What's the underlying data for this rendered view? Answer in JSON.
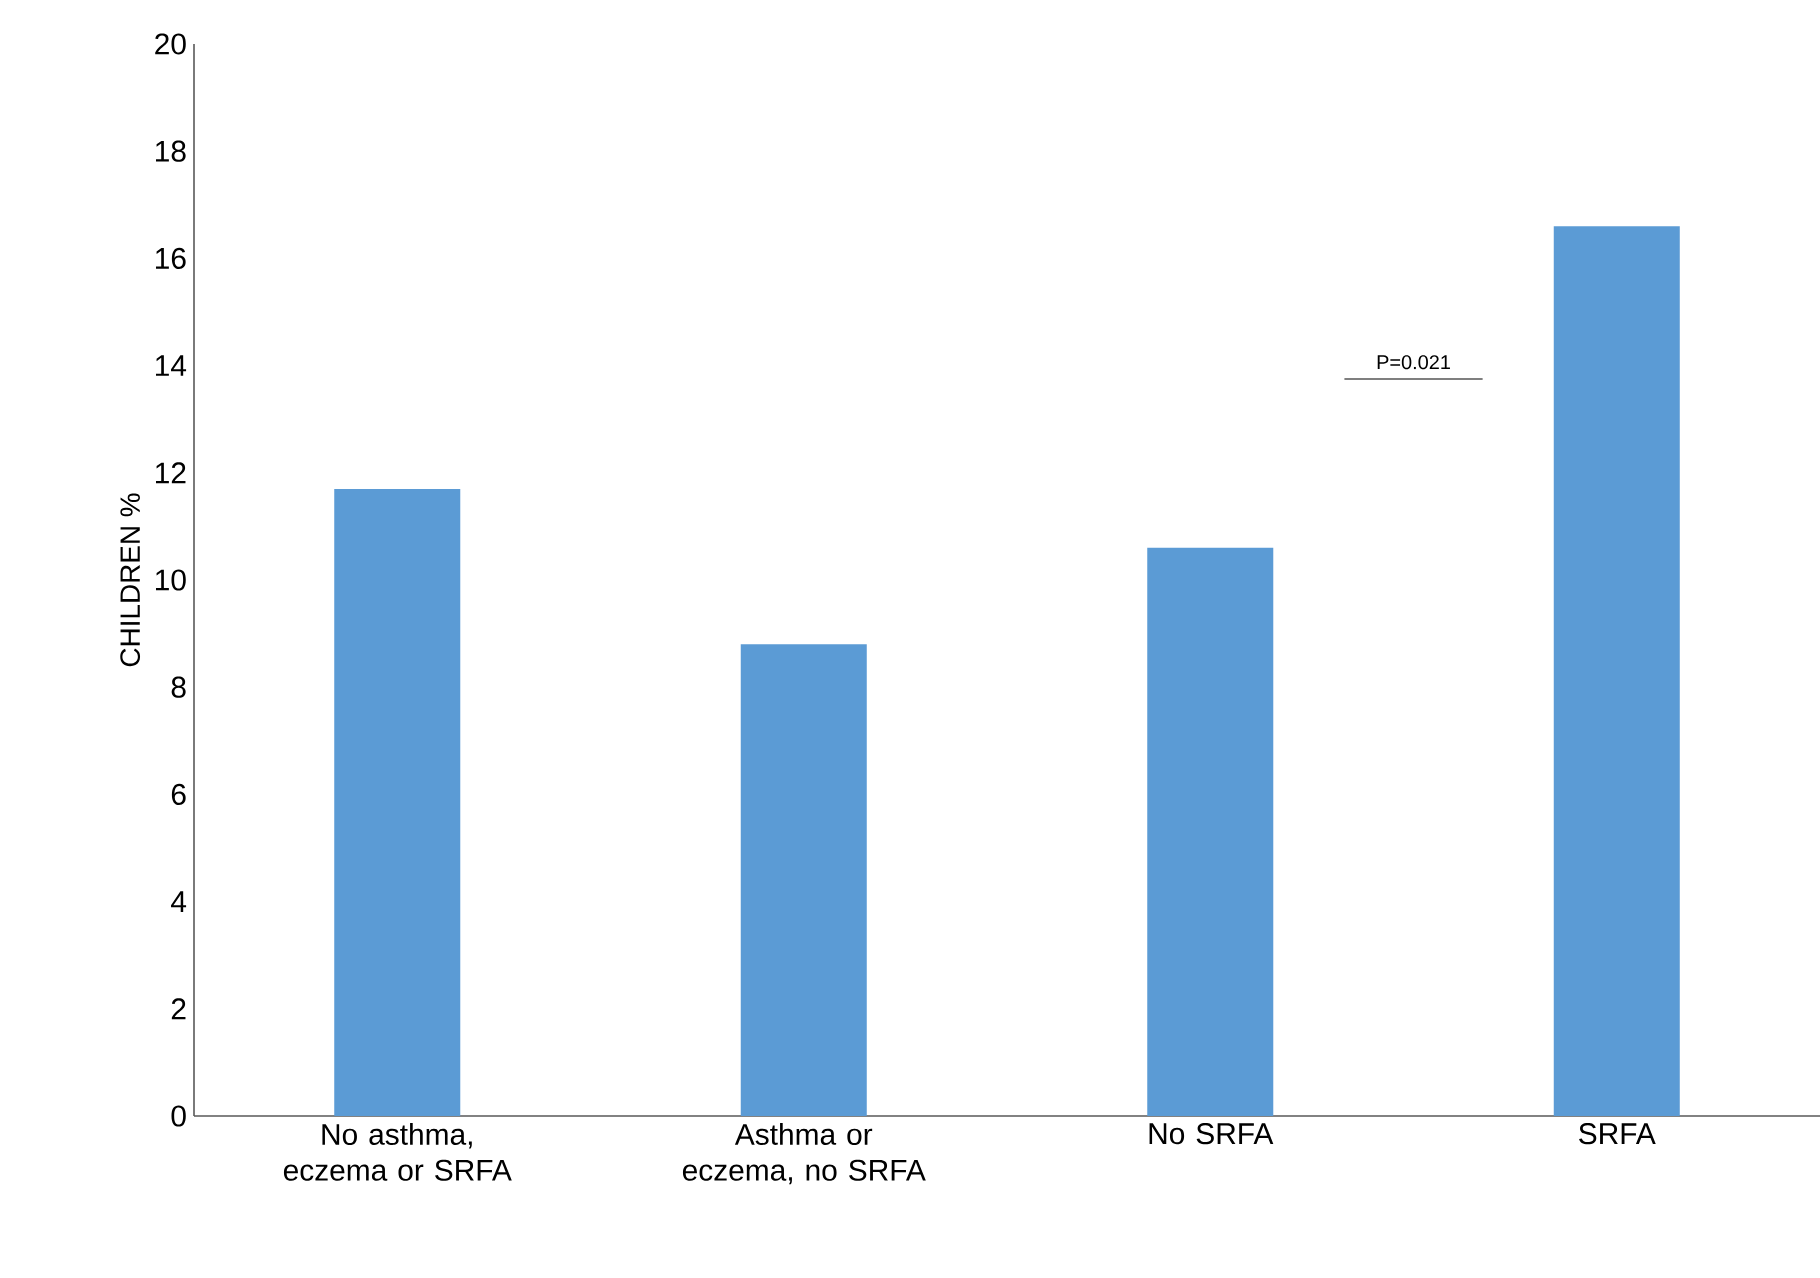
{
  "chart_data": {
    "type": "bar",
    "ylabel": "CHILDREN %",
    "categories": [
      "No asthma, eczema or SRFA",
      "Asthma or eczema, no SRFA",
      "No SRFA",
      "SRFA"
    ],
    "values": [
      11.7,
      8.8,
      10.6,
      16.6
    ],
    "color": "#5b9bd5",
    "ylim": [
      0,
      20
    ],
    "yticks": [
      0,
      2,
      4,
      6,
      8,
      10,
      12,
      14,
      16,
      18,
      20
    ],
    "grid": false,
    "annotations": [
      "P=0.021"
    ]
  }
}
